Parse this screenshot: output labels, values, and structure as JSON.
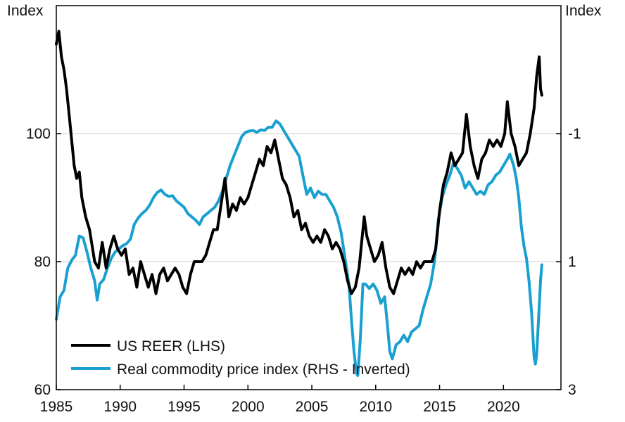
{
  "chart_data": {
    "type": "line",
    "title": "",
    "y_left_label": "Index",
    "y_right_label": "Index",
    "x_range": [
      1985,
      2024.5
    ],
    "y_left_range": [
      60,
      80,
      100,
      120
    ],
    "y_left_ticks": [
      "60",
      "80",
      "100"
    ],
    "y_right_ticks": [
      "3",
      "1",
      "-1"
    ],
    "x_ticks": [
      "1985",
      "1990",
      "1995",
      "2000",
      "2005",
      "2010",
      "2015",
      "2020"
    ],
    "grid": "horizontal at 80 and 100",
    "legend_position": "bottom-left",
    "series": [
      {
        "name": "US REER (LHS)",
        "axis": "left",
        "color": "#000000",
        "points": [
          [
            1985.0,
            114
          ],
          [
            1985.2,
            116
          ],
          [
            1985.4,
            112
          ],
          [
            1985.6,
            110
          ],
          [
            1985.8,
            107
          ],
          [
            1986.0,
            103
          ],
          [
            1986.2,
            99
          ],
          [
            1986.4,
            95
          ],
          [
            1986.6,
            93
          ],
          [
            1986.8,
            94
          ],
          [
            1987.0,
            90
          ],
          [
            1987.3,
            87
          ],
          [
            1987.6,
            85
          ],
          [
            1988.0,
            80
          ],
          [
            1988.3,
            79
          ],
          [
            1988.6,
            83
          ],
          [
            1988.9,
            79
          ],
          [
            1989.2,
            82
          ],
          [
            1989.5,
            84
          ],
          [
            1989.8,
            82
          ],
          [
            1990.1,
            81
          ],
          [
            1990.4,
            82
          ],
          [
            1990.7,
            78
          ],
          [
            1991.0,
            79
          ],
          [
            1991.3,
            76
          ],
          [
            1991.6,
            80
          ],
          [
            1991.9,
            78
          ],
          [
            1992.2,
            76
          ],
          [
            1992.5,
            78
          ],
          [
            1992.8,
            75
          ],
          [
            1993.1,
            78
          ],
          [
            1993.4,
            79
          ],
          [
            1993.7,
            77
          ],
          [
            1994.0,
            78
          ],
          [
            1994.3,
            79
          ],
          [
            1994.6,
            78
          ],
          [
            1994.9,
            76
          ],
          [
            1995.2,
            75
          ],
          [
            1995.5,
            78
          ],
          [
            1995.8,
            80
          ],
          [
            1996.1,
            80
          ],
          [
            1996.4,
            80
          ],
          [
            1996.7,
            81
          ],
          [
            1997.0,
            83
          ],
          [
            1997.3,
            85
          ],
          [
            1997.6,
            85
          ],
          [
            1997.9,
            89
          ],
          [
            1998.2,
            93
          ],
          [
            1998.5,
            87
          ],
          [
            1998.8,
            89
          ],
          [
            1999.1,
            88
          ],
          [
            1999.4,
            90
          ],
          [
            1999.7,
            89
          ],
          [
            2000.0,
            90
          ],
          [
            2000.3,
            92
          ],
          [
            2000.6,
            94
          ],
          [
            2000.9,
            96
          ],
          [
            2001.2,
            95
          ],
          [
            2001.5,
            98
          ],
          [
            2001.8,
            97
          ],
          [
            2002.1,
            99
          ],
          [
            2002.4,
            96
          ],
          [
            2002.7,
            93
          ],
          [
            2003.0,
            92
          ],
          [
            2003.3,
            90
          ],
          [
            2003.6,
            87
          ],
          [
            2003.9,
            88
          ],
          [
            2004.2,
            85
          ],
          [
            2004.5,
            86
          ],
          [
            2004.8,
            84
          ],
          [
            2005.1,
            83
          ],
          [
            2005.4,
            84
          ],
          [
            2005.7,
            83
          ],
          [
            2006.0,
            85
          ],
          [
            2006.3,
            84
          ],
          [
            2006.6,
            82
          ],
          [
            2006.9,
            83
          ],
          [
            2007.2,
            82
          ],
          [
            2007.5,
            80
          ],
          [
            2007.8,
            77
          ],
          [
            2008.1,
            75
          ],
          [
            2008.4,
            76
          ],
          [
            2008.7,
            79
          ],
          [
            2008.9,
            83
          ],
          [
            2009.1,
            87
          ],
          [
            2009.3,
            84
          ],
          [
            2009.6,
            82
          ],
          [
            2009.9,
            80
          ],
          [
            2010.2,
            81
          ],
          [
            2010.5,
            83
          ],
          [
            2010.8,
            79
          ],
          [
            2011.1,
            76
          ],
          [
            2011.4,
            75
          ],
          [
            2011.7,
            77
          ],
          [
            2012.0,
            79
          ],
          [
            2012.3,
            78
          ],
          [
            2012.6,
            79
          ],
          [
            2012.9,
            78
          ],
          [
            2013.2,
            80
          ],
          [
            2013.5,
            79
          ],
          [
            2013.8,
            80
          ],
          [
            2014.1,
            80
          ],
          [
            2014.4,
            80
          ],
          [
            2014.7,
            82
          ],
          [
            2015.0,
            88
          ],
          [
            2015.3,
            92
          ],
          [
            2015.6,
            94
          ],
          [
            2015.9,
            97
          ],
          [
            2016.2,
            95
          ],
          [
            2016.5,
            96
          ],
          [
            2016.8,
            97
          ],
          [
            2017.1,
            103
          ],
          [
            2017.4,
            98
          ],
          [
            2017.7,
            95
          ],
          [
            2018.0,
            93
          ],
          [
            2018.3,
            96
          ],
          [
            2018.6,
            97
          ],
          [
            2018.9,
            99
          ],
          [
            2019.2,
            98
          ],
          [
            2019.5,
            99
          ],
          [
            2019.8,
            98
          ],
          [
            2020.1,
            100
          ],
          [
            2020.3,
            105
          ],
          [
            2020.6,
            100
          ],
          [
            2020.9,
            98
          ],
          [
            2021.2,
            95
          ],
          [
            2021.5,
            96
          ],
          [
            2021.8,
            97
          ],
          [
            2022.1,
            100
          ],
          [
            2022.4,
            104
          ],
          [
            2022.6,
            109
          ],
          [
            2022.8,
            112
          ],
          [
            2022.9,
            107
          ],
          [
            2023.0,
            106
          ]
        ]
      },
      {
        "name": "Real commodity price index (RHS - Inverted)",
        "axis": "right",
        "color": "#1aa0d0",
        "points": [
          [
            1985.0,
            1.9
          ],
          [
            1985.3,
            1.55
          ],
          [
            1985.6,
            1.45
          ],
          [
            1985.9,
            1.1
          ],
          [
            1986.2,
            0.98
          ],
          [
            1986.5,
            0.9
          ],
          [
            1986.8,
            0.6
          ],
          [
            1987.1,
            0.63
          ],
          [
            1987.4,
            0.85
          ],
          [
            1987.7,
            1.1
          ],
          [
            1988.0,
            1.3
          ],
          [
            1988.2,
            1.6
          ],
          [
            1988.4,
            1.35
          ],
          [
            1988.7,
            1.28
          ],
          [
            1989.0,
            1.1
          ],
          [
            1989.3,
            0.95
          ],
          [
            1989.6,
            0.85
          ],
          [
            1989.9,
            0.8
          ],
          [
            1990.2,
            0.75
          ],
          [
            1990.5,
            0.72
          ],
          [
            1990.8,
            0.65
          ],
          [
            1991.1,
            0.42
          ],
          [
            1991.4,
            0.32
          ],
          [
            1991.7,
            0.25
          ],
          [
            1992.0,
            0.2
          ],
          [
            1992.3,
            0.12
          ],
          [
            1992.6,
            0.0
          ],
          [
            1992.9,
            -0.08
          ],
          [
            1993.2,
            -0.12
          ],
          [
            1993.5,
            -0.05
          ],
          [
            1993.8,
            -0.02
          ],
          [
            1994.1,
            -0.03
          ],
          [
            1994.4,
            0.05
          ],
          [
            1994.7,
            0.1
          ],
          [
            1995.0,
            0.15
          ],
          [
            1995.3,
            0.25
          ],
          [
            1995.6,
            0.3
          ],
          [
            1995.9,
            0.35
          ],
          [
            1996.2,
            0.42
          ],
          [
            1996.5,
            0.3
          ],
          [
            1996.8,
            0.25
          ],
          [
            1997.1,
            0.2
          ],
          [
            1997.4,
            0.15
          ],
          [
            1997.7,
            0.05
          ],
          [
            1998.0,
            -0.1
          ],
          [
            1998.3,
            -0.3
          ],
          [
            1998.6,
            -0.5
          ],
          [
            1998.9,
            -0.65
          ],
          [
            1999.2,
            -0.8
          ],
          [
            1999.5,
            -0.95
          ],
          [
            1999.8,
            -1.02
          ],
          [
            2000.1,
            -1.04
          ],
          [
            2000.4,
            -1.05
          ],
          [
            2000.7,
            -1.02
          ],
          [
            2001.0,
            -1.06
          ],
          [
            2001.3,
            -1.05
          ],
          [
            2001.6,
            -1.1
          ],
          [
            2001.9,
            -1.1
          ],
          [
            2002.2,
            -1.2
          ],
          [
            2002.5,
            -1.15
          ],
          [
            2002.8,
            -1.05
          ],
          [
            2003.1,
            -0.95
          ],
          [
            2003.4,
            -0.85
          ],
          [
            2003.7,
            -0.75
          ],
          [
            2004.0,
            -0.65
          ],
          [
            2004.3,
            -0.35
          ],
          [
            2004.6,
            -0.05
          ],
          [
            2004.9,
            -0.15
          ],
          [
            2005.2,
            0.0
          ],
          [
            2005.5,
            -0.1
          ],
          [
            2005.8,
            -0.05
          ],
          [
            2006.1,
            -0.05
          ],
          [
            2006.4,
            0.05
          ],
          [
            2006.7,
            0.15
          ],
          [
            2007.0,
            0.3
          ],
          [
            2007.3,
            0.55
          ],
          [
            2007.6,
            0.95
          ],
          [
            2007.9,
            1.35
          ],
          [
            2008.1,
            1.9
          ],
          [
            2008.3,
            2.4
          ],
          [
            2008.5,
            2.75
          ],
          [
            2008.6,
            2.78
          ],
          [
            2008.8,
            2.2
          ],
          [
            2009.0,
            1.35
          ],
          [
            2009.2,
            1.35
          ],
          [
            2009.5,
            1.42
          ],
          [
            2009.8,
            1.35
          ],
          [
            2010.1,
            1.45
          ],
          [
            2010.4,
            1.65
          ],
          [
            2010.7,
            1.55
          ],
          [
            2010.9,
            1.95
          ],
          [
            2011.1,
            2.4
          ],
          [
            2011.3,
            2.52
          ],
          [
            2011.6,
            2.3
          ],
          [
            2011.9,
            2.25
          ],
          [
            2012.2,
            2.15
          ],
          [
            2012.5,
            2.25
          ],
          [
            2012.8,
            2.1
          ],
          [
            2013.1,
            2.05
          ],
          [
            2013.4,
            2.0
          ],
          [
            2013.7,
            1.75
          ],
          [
            2014.0,
            1.55
          ],
          [
            2014.3,
            1.35
          ],
          [
            2014.6,
            1.0
          ],
          [
            2014.9,
            0.35
          ],
          [
            2015.2,
            0.0
          ],
          [
            2015.5,
            -0.2
          ],
          [
            2015.8,
            -0.35
          ],
          [
            2016.1,
            -0.55
          ],
          [
            2016.4,
            -0.45
          ],
          [
            2016.7,
            -0.35
          ],
          [
            2017.0,
            -0.15
          ],
          [
            2017.3,
            -0.25
          ],
          [
            2017.6,
            -0.15
          ],
          [
            2017.9,
            -0.05
          ],
          [
            2018.2,
            -0.1
          ],
          [
            2018.5,
            -0.05
          ],
          [
            2018.8,
            -0.2
          ],
          [
            2019.1,
            -0.25
          ],
          [
            2019.4,
            -0.35
          ],
          [
            2019.7,
            -0.4
          ],
          [
            2020.0,
            -0.5
          ],
          [
            2020.3,
            -0.6
          ],
          [
            2020.5,
            -0.68
          ],
          [
            2020.8,
            -0.5
          ],
          [
            2021.0,
            -0.3
          ],
          [
            2021.2,
            0.0
          ],
          [
            2021.4,
            0.45
          ],
          [
            2021.6,
            0.75
          ],
          [
            2021.8,
            0.95
          ],
          [
            2022.0,
            1.3
          ],
          [
            2022.2,
            1.8
          ],
          [
            2022.4,
            2.5
          ],
          [
            2022.5,
            2.6
          ],
          [
            2022.6,
            2.45
          ],
          [
            2022.8,
            1.7
          ],
          [
            2022.9,
            1.3
          ],
          [
            2023.0,
            1.05
          ]
        ]
      }
    ]
  }
}
